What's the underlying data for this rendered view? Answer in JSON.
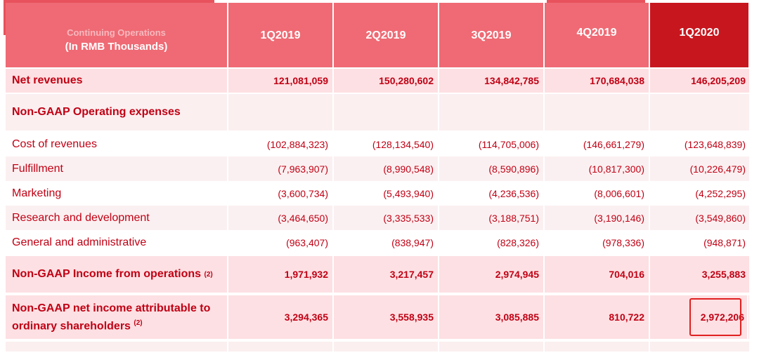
{
  "header": {
    "row_label_line1": "Continuing Operations",
    "row_label_line2": "(In RMB Thousands)",
    "periods": [
      "1Q2019",
      "2Q2019",
      "3Q2019",
      "4Q2019",
      "1Q2020"
    ]
  },
  "rows": {
    "net_revenues": {
      "label": "Net revenues",
      "values": [
        "121,081,059",
        "150,280,602",
        "134,842,785",
        "170,684,038",
        "146,205,209"
      ]
    },
    "opex_title": {
      "label": "Non-GAAP Operating expenses"
    },
    "items": [
      {
        "label": "Cost of revenues",
        "values": [
          "(102,884,323)",
          "(128,134,540)",
          "(114,705,006)",
          "(146,661,279)",
          "(123,648,839)"
        ]
      },
      {
        "label": "Fulfillment",
        "values": [
          "(7,963,907)",
          "(8,990,548)",
          "(8,590,896)",
          "(10,817,300)",
          "(10,226,479)"
        ]
      },
      {
        "label": "Marketing",
        "values": [
          "(3,600,734)",
          "(5,493,940)",
          "(4,236,536)",
          "(8,006,601)",
          "(4,252,295)"
        ]
      },
      {
        "label": "Research and development",
        "values": [
          "(3,464,650)",
          "(3,335,533)",
          "(3,188,751)",
          "(3,190,146)",
          "(3,549,860)"
        ]
      },
      {
        "label": "General and administrative",
        "values": [
          "(963,407)",
          "(838,947)",
          "(828,326)",
          "(978,336)",
          "(948,871)"
        ]
      }
    ],
    "income_ops": {
      "label": "Non-GAAP Income from operations",
      "note": "(2)",
      "values": [
        "1,971,932",
        "3,217,457",
        "2,974,945",
        "704,016",
        "3,255,883"
      ]
    },
    "net_income": {
      "label_line1": "Non-GAAP net income attributable to",
      "label_line2": "ordinary shareholders",
      "note": "(2)",
      "values": [
        "3,294,365",
        "3,558,935",
        "3,085,885",
        "810,722",
        "2,972,206"
      ]
    }
  },
  "highlight_color": "#e02020"
}
